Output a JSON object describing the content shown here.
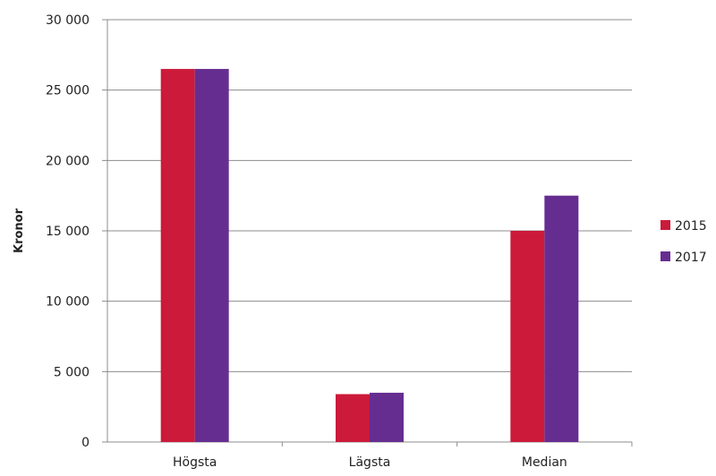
{
  "chart_data": {
    "type": "bar",
    "title": "",
    "xlabel": "",
    "ylabel": "Kronor",
    "categories": [
      "Högsta",
      "Lägsta",
      "Median"
    ],
    "series": [
      {
        "name": "2015",
        "color": "#cc1a3a",
        "values": [
          26500,
          3400,
          15000
        ]
      },
      {
        "name": "2017",
        "color": "#662d91",
        "values": [
          26500,
          3500,
          17500
        ]
      }
    ],
    "ylim": [
      0,
      30000
    ],
    "y_ticks": [
      0,
      5000,
      10000,
      15000,
      20000,
      25000,
      30000
    ],
    "y_tick_labels": [
      "0",
      "5 000",
      "10 000",
      "15 000",
      "20 000",
      "25 000",
      "30 000"
    ],
    "grid": true,
    "legend_position": "right"
  }
}
